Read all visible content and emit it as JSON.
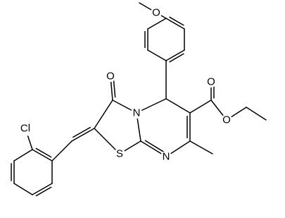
{
  "atoms": [
    {
      "label": "O"
    },
    {
      "label": "O"
    },
    {
      "label": "O"
    },
    {
      "label": "O"
    },
    {
      "label": "N"
    },
    {
      "label": "N"
    },
    {
      "label": "S"
    },
    {
      "label": "Cl"
    }
  ]
}
